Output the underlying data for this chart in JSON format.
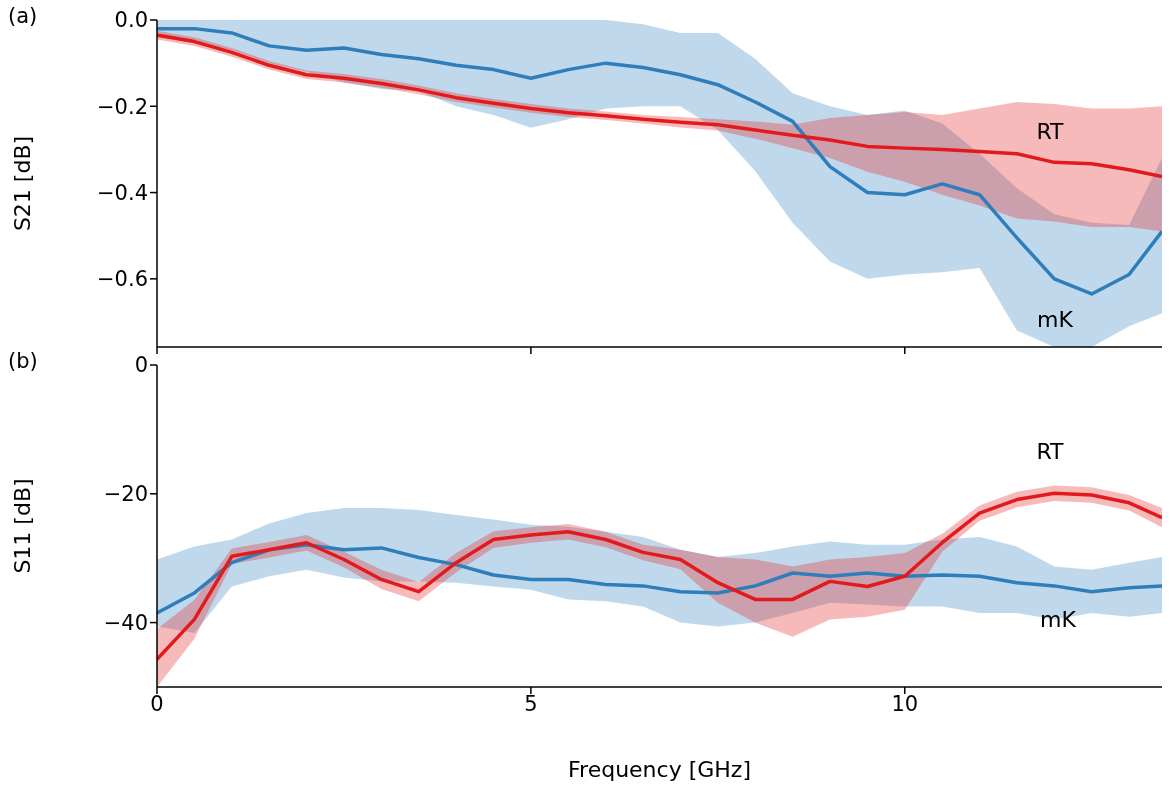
{
  "chart_data": [
    {
      "type": "line",
      "ylabel": "S21 [dB]",
      "annotations": [
        "(a)"
      ],
      "x": [
        0,
        0.5,
        1,
        1.5,
        2,
        2.5,
        3,
        3.5,
        4,
        4.5,
        5,
        5.5,
        6,
        6.5,
        7,
        7.5,
        8,
        8.5,
        9,
        9.5,
        10,
        10.5,
        11,
        11.5,
        12,
        12.5,
        13,
        13.44
      ],
      "series": [
        {
          "name": "mK",
          "color": "#2f7ebc",
          "values": [
            -0.02,
            -0.02,
            -0.03,
            -0.06,
            -0.07,
            -0.065,
            -0.08,
            -0.09,
            -0.105,
            -0.115,
            -0.135,
            -0.115,
            -0.1,
            -0.11,
            -0.127,
            -0.15,
            -0.19,
            -0.235,
            -0.34,
            -0.4,
            -0.405,
            -0.38,
            -0.405,
            -0.505,
            -0.6,
            -0.635,
            -0.59,
            -0.49
          ],
          "upper": [
            0,
            0,
            0,
            0,
            0,
            0,
            0,
            0,
            0,
            0,
            0,
            0,
            0,
            -0.01,
            -0.03,
            -0.03,
            -0.09,
            -0.17,
            -0.2,
            -0.22,
            -0.21,
            -0.24,
            -0.31,
            -0.39,
            -0.45,
            -0.47,
            -0.475,
            -0.32
          ],
          "lower": [
            -0.03,
            -0.05,
            -0.07,
            -0.1,
            -0.12,
            -0.145,
            -0.16,
            -0.165,
            -0.2,
            -0.22,
            -0.25,
            -0.23,
            -0.205,
            -0.2,
            -0.2,
            -0.255,
            -0.35,
            -0.47,
            -0.56,
            -0.6,
            -0.59,
            -0.585,
            -0.575,
            -0.72,
            -0.758,
            -0.758,
            -0.71,
            -0.68
          ]
        },
        {
          "name": "RT",
          "color": "#e31a1c",
          "values": [
            -0.035,
            -0.05,
            -0.075,
            -0.105,
            -0.127,
            -0.135,
            -0.147,
            -0.162,
            -0.18,
            -0.193,
            -0.205,
            -0.215,
            -0.222,
            -0.23,
            -0.237,
            -0.243,
            -0.255,
            -0.267,
            -0.278,
            -0.293,
            -0.297,
            -0.3,
            -0.305,
            -0.31,
            -0.33,
            -0.333,
            -0.347,
            -0.363
          ],
          "upper": [
            -0.025,
            -0.04,
            -0.065,
            -0.095,
            -0.117,
            -0.125,
            -0.137,
            -0.152,
            -0.17,
            -0.183,
            -0.195,
            -0.205,
            -0.212,
            -0.22,
            -0.225,
            -0.23,
            -0.235,
            -0.243,
            -0.227,
            -0.22,
            -0.213,
            -0.22,
            -0.205,
            -0.19,
            -0.195,
            -0.205,
            -0.205,
            -0.2
          ],
          "lower": [
            -0.045,
            -0.06,
            -0.085,
            -0.115,
            -0.137,
            -0.145,
            -0.157,
            -0.172,
            -0.19,
            -0.203,
            -0.215,
            -0.225,
            -0.232,
            -0.24,
            -0.249,
            -0.256,
            -0.275,
            -0.297,
            -0.32,
            -0.352,
            -0.375,
            -0.405,
            -0.43,
            -0.46,
            -0.467,
            -0.48,
            -0.48,
            -0.49
          ]
        }
      ],
      "xlim": [
        0,
        13.44
      ],
      "xticks": [
        0,
        5,
        10
      ],
      "ylim": [
        -0.758,
        0
      ],
      "yticks": [
        {
          "value": 0,
          "label": "0.0"
        },
        {
          "value": -0.2,
          "label": "−0.2"
        },
        {
          "value": -0.4,
          "label": "−0.4"
        },
        {
          "value": -0.6,
          "label": "−0.6"
        }
      ],
      "tick_labels": "y"
    },
    {
      "type": "line",
      "xlabel": "Frequency [GHz]",
      "ylabel": "S11 [dB]",
      "annotations": [
        "(b)"
      ],
      "x": [
        0,
        0.5,
        1,
        1.5,
        2,
        2.5,
        3,
        3.5,
        4,
        4.5,
        5,
        5.5,
        6,
        6.5,
        7,
        7.5,
        8,
        8.5,
        9,
        9.5,
        10,
        10.5,
        11,
        11.5,
        12,
        12.5,
        13,
        13.44
      ],
      "series": [
        {
          "name": "mK",
          "color": "#2f7ebc",
          "values": [
            -38.5,
            -35.4,
            -30.7,
            -28.7,
            -27.9,
            -28.7,
            -28.4,
            -29.9,
            -31,
            -32.6,
            -33.3,
            -33.3,
            -34.1,
            -34.3,
            -35.2,
            -35.4,
            -34.3,
            -32.3,
            -32.8,
            -32.3,
            -32.8,
            -32.6,
            -32.8,
            -33.8,
            -34.3,
            -35.2,
            -34.6,
            -34.3
          ],
          "upper": [
            -30.2,
            -28.2,
            -27.1,
            -24.6,
            -23,
            -22.2,
            -22.2,
            -22.5,
            -23.3,
            -24,
            -24.8,
            -25.1,
            -25.9,
            -26.7,
            -28.7,
            -29.8,
            -29.2,
            -28.2,
            -27.4,
            -27.9,
            -27.9,
            -27.1,
            -26.7,
            -28.2,
            -31.3,
            -31.8,
            -30.7,
            -29.8
          ],
          "lower": [
            -40.6,
            -41.6,
            -34.4,
            -32.8,
            -31.8,
            -33,
            -33.6,
            -33.6,
            -33.8,
            -34.4,
            -34.9,
            -36.4,
            -36.7,
            -37.5,
            -40,
            -40.6,
            -40,
            -38.5,
            -36.9,
            -37.2,
            -37.5,
            -37.5,
            -38.5,
            -38.5,
            -39.5,
            -38.5,
            -39.1,
            -38.5
          ]
        },
        {
          "name": "RT",
          "color": "#e31a1c",
          "values": [
            -45.7,
            -39.5,
            -29.7,
            -28.7,
            -27.6,
            -30.2,
            -33.3,
            -35.2,
            -30.7,
            -27.1,
            -26.4,
            -25.9,
            -27.1,
            -29.1,
            -30.2,
            -33.8,
            -36.4,
            -36.4,
            -33.6,
            -34.4,
            -32.8,
            -27.6,
            -23,
            -20.9,
            -19.9,
            -20.2,
            -21.4,
            -23.7
          ],
          "upper": [
            -41,
            -36.5,
            -28.5,
            -27.5,
            -26.4,
            -29,
            -31.8,
            -33.7,
            -29.2,
            -25.8,
            -25.2,
            -24.7,
            -25.9,
            -27.9,
            -28.7,
            -29.8,
            -30.2,
            -31.3,
            -30.2,
            -29.8,
            -29.2,
            -26.2,
            -21.8,
            -19.7,
            -18.7,
            -19,
            -20.2,
            -22.2
          ],
          "lower": [
            -50,
            -42.5,
            -30.9,
            -29.9,
            -28.8,
            -31.4,
            -34.8,
            -36.7,
            -32.2,
            -28.4,
            -27.6,
            -27.1,
            -28.3,
            -30.3,
            -31.7,
            -36.9,
            -40,
            -42.2,
            -39.5,
            -39.1,
            -38,
            -29,
            -24.2,
            -22.1,
            -21.1,
            -21.4,
            -22.6,
            -25.2
          ]
        }
      ],
      "xlim": [
        0,
        13.44
      ],
      "xticks": [
        0,
        5,
        10
      ],
      "ylim": [
        -50,
        0
      ],
      "yticks": [
        0,
        {
          "value": -20,
          "label": "−20"
        },
        {
          "value": -40,
          "label": "−40"
        }
      ]
    }
  ]
}
